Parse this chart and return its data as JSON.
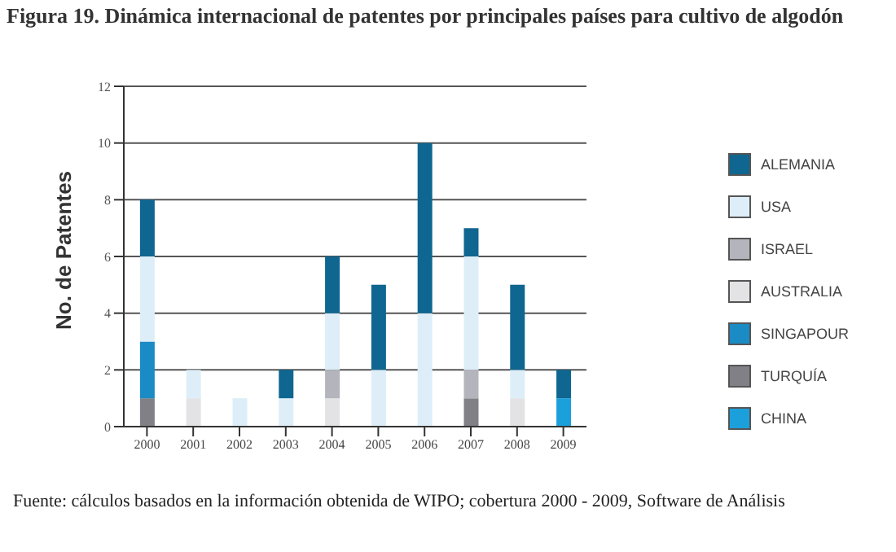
{
  "chart_data": {
    "type": "bar",
    "title": "Figura 19. Dinámica internacional de patentes por principales países para cultivo de algodón",
    "ylabel": "No. de Patentes",
    "categories": [
      "2000",
      "2001",
      "2002",
      "2003",
      "2004",
      "2005",
      "2006",
      "2007",
      "2008",
      "2009"
    ],
    "series": [
      {
        "name": "CHINA",
        "color": "#1ba0dc",
        "values": [
          0,
          0,
          0,
          0,
          0,
          0,
          0,
          0,
          0,
          1
        ]
      },
      {
        "name": "TURQUÍA",
        "color": "#808086",
        "values": [
          1,
          0,
          0,
          0,
          0,
          0,
          0,
          1,
          0,
          0
        ]
      },
      {
        "name": "SINGAPOUR",
        "color": "#1a8bc4",
        "values": [
          2,
          0,
          0,
          0,
          0,
          0,
          0,
          0,
          0,
          0
        ]
      },
      {
        "name": "AUSTRALIA",
        "color": "#e3e3e6",
        "values": [
          0,
          1,
          0,
          0,
          1,
          0,
          0,
          0,
          1,
          0
        ]
      },
      {
        "name": "ISRAEL",
        "color": "#b4b4bc",
        "values": [
          0,
          0,
          0,
          0,
          1,
          0,
          0,
          1,
          0,
          0
        ]
      },
      {
        "name": "USA",
        "color": "#ddeef8",
        "values": [
          3,
          1,
          1,
          1,
          2,
          2,
          4,
          4,
          1,
          0
        ]
      },
      {
        "name": "ALEMANIA",
        "color": "#0f6690",
        "values": [
          2,
          0,
          0,
          1,
          2,
          3,
          6,
          1,
          3,
          1
        ]
      }
    ],
    "stacked": true,
    "ylim": [
      0,
      12
    ],
    "yticks": [
      0,
      2,
      4,
      6,
      8,
      10,
      12
    ],
    "grid": "y",
    "legend": "right",
    "annotations": [
      "Fuente: cálculos basados en la información obtenida de WIPO; cobertura 2000 - 2009, Software de Análisis"
    ]
  }
}
